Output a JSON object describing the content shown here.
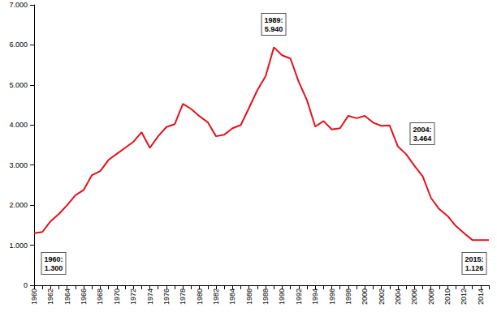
{
  "chart_data": {
    "type": "line",
    "categories": [
      "1960",
      null,
      "1962",
      null,
      "1964",
      null,
      "1966",
      null,
      "1968",
      null,
      "1970",
      null,
      "1972",
      null,
      "1974",
      null,
      "1976",
      null,
      "1978",
      null,
      "1980",
      null,
      "1982",
      null,
      "1984",
      null,
      "1986",
      null,
      "1988",
      null,
      "1990",
      null,
      "1992",
      null,
      "1994",
      null,
      "1996",
      null,
      "1998",
      null,
      "2000",
      null,
      "2002",
      null,
      "2004",
      null,
      "2006",
      null,
      "2008",
      null,
      "2010",
      null,
      "2012",
      null,
      "2014",
      null
    ],
    "values": [
      1300,
      1330,
      1600,
      1780,
      2000,
      2250,
      2380,
      2750,
      2850,
      3130,
      3280,
      3430,
      3580,
      3820,
      3430,
      3720,
      3950,
      4020,
      4530,
      4400,
      4220,
      4070,
      3720,
      3760,
      3920,
      4000,
      4430,
      4870,
      5220,
      5940,
      5740,
      5660,
      5080,
      4620,
      3960,
      4100,
      3890,
      3920,
      4230,
      4170,
      4230,
      4060,
      3980,
      3990,
      3464,
      3270,
      2980,
      2720,
      2180,
      1900,
      1730,
      1480,
      1300,
      1130,
      1130,
      1126
    ],
    "color": "#e3121b",
    "ylim": [
      0,
      7000
    ],
    "yticks": [
      0,
      {
        "value": 1000,
        "label": "1.000"
      },
      {
        "value": 2000,
        "label": "2.000"
      },
      {
        "value": 3000,
        "label": "3.000"
      },
      {
        "value": 4000,
        "label": "4.000"
      },
      {
        "value": 5000,
        "label": "5.000"
      },
      {
        "value": 6000,
        "label": "6.000"
      },
      {
        "value": 7000,
        "label": "7.000"
      }
    ],
    "grid": false,
    "annotations": [
      {
        "text": "1960: 1.300"
      },
      {
        "text": "1989: 5.940"
      },
      {
        "text": "2004: 3.464"
      },
      {
        "text": "2015: 1.126"
      }
    ]
  }
}
